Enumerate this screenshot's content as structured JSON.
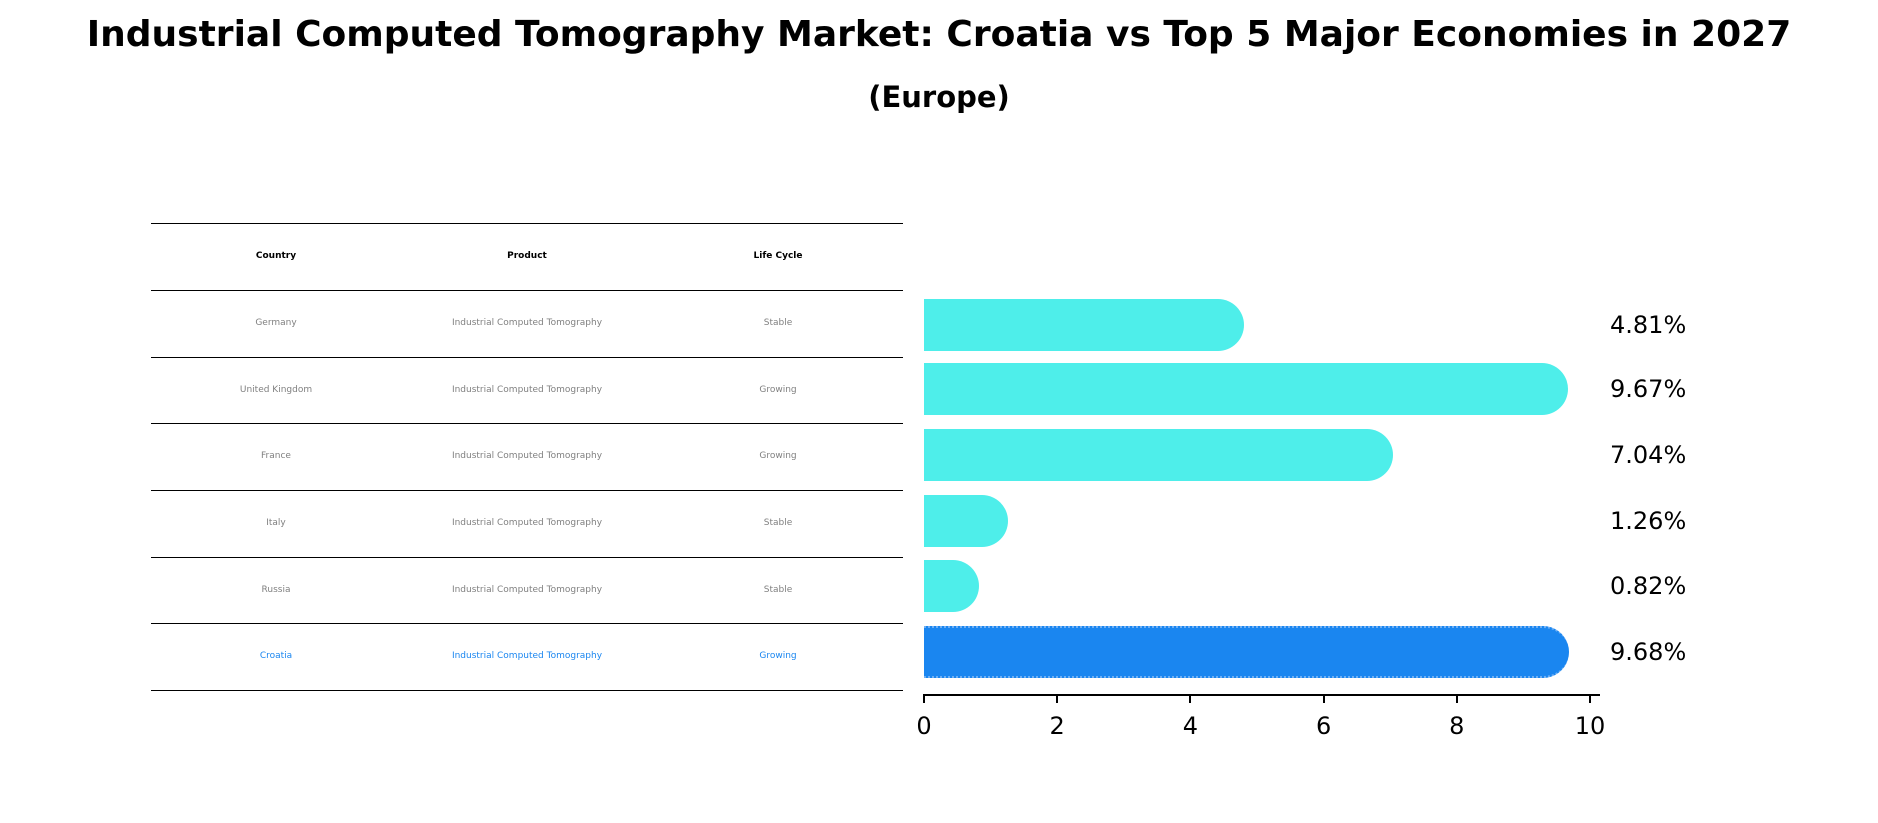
{
  "title": "Industrial Computed Tomography Market: Croatia vs Top 5 Major Economies in 2027",
  "subtitle": "(Europe)",
  "table": {
    "columns": [
      "Country",
      "Product",
      "Life Cycle"
    ],
    "rows": [
      [
        "Germany",
        "Industrial Computed Tomography",
        "Stable"
      ],
      [
        "United Kingdom",
        "Industrial Computed Tomography",
        "Growing"
      ],
      [
        "France",
        "Industrial Computed Tomography",
        "Growing"
      ],
      [
        "Italy",
        "Industrial Computed Tomography",
        "Stable"
      ],
      [
        "Russia",
        "Industrial Computed Tomography",
        "Stable"
      ],
      [
        "Croatia",
        "Industrial Computed Tomography",
        "Growing"
      ]
    ],
    "highlight_row": 5
  },
  "colors": {
    "bar_default": "#4eeeea",
    "bar_highlight": "#1a86f0",
    "table_text": "#808080",
    "table_highlight_text": "#1a86f0"
  },
  "chart_data": {
    "type": "bar",
    "orientation": "horizontal",
    "title": "Industrial Computed Tomography Market: Croatia vs Top 5 Major Economies in 2027",
    "subtitle": "(Europe)",
    "categories": [
      "Germany",
      "United Kingdom",
      "France",
      "Italy",
      "Russia",
      "Croatia"
    ],
    "values": [
      4.81,
      9.67,
      7.04,
      1.26,
      0.82,
      9.68
    ],
    "value_labels": [
      "4.81%",
      "9.67%",
      "7.04%",
      "1.26%",
      "0.82%",
      "9.68%"
    ],
    "highlight": "Croatia",
    "xlabel": "",
    "ylabel": "",
    "xlim": [
      0,
      10
    ],
    "xticks": [
      "0",
      "2",
      "4",
      "6",
      "8",
      "10"
    ],
    "grid": false,
    "legend": null
  }
}
